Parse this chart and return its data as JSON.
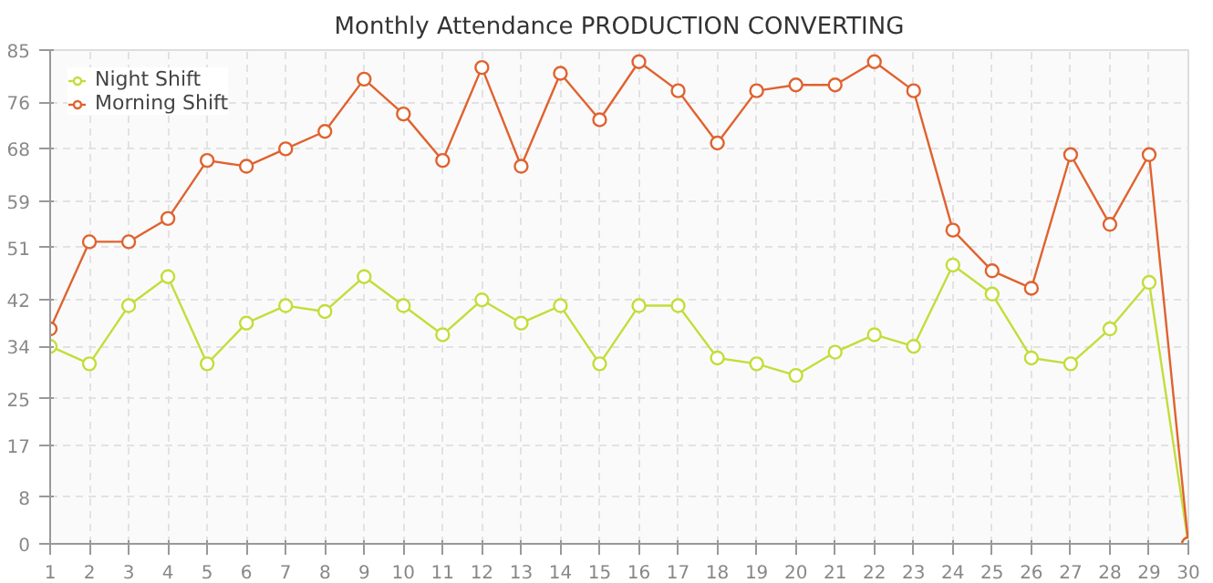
{
  "chart_data": {
    "type": "line",
    "title": "Monthly Attendance PRODUCTION CONVERTING",
    "x": [
      1,
      2,
      3,
      4,
      5,
      6,
      7,
      8,
      9,
      10,
      11,
      12,
      13,
      14,
      15,
      16,
      17,
      18,
      19,
      20,
      21,
      22,
      23,
      24,
      25,
      26,
      27,
      28,
      29,
      30
    ],
    "series": [
      {
        "name": "Night Shift",
        "color": "#c3dd3a",
        "values": [
          34,
          31,
          41,
          46,
          31,
          38,
          41,
          40,
          46,
          41,
          36,
          42,
          38,
          41,
          31,
          41,
          41,
          32,
          31,
          29,
          33,
          36,
          34,
          48,
          43,
          32,
          31,
          37,
          45,
          0
        ]
      },
      {
        "name": "Morning Shift",
        "color": "#e0622f",
        "values": [
          37,
          52,
          52,
          56,
          66,
          65,
          68,
          71,
          80,
          74,
          66,
          82,
          65,
          81,
          73,
          83,
          78,
          69,
          78,
          79,
          79,
          83,
          78,
          54,
          47,
          44,
          67,
          55,
          67,
          0
        ]
      }
    ],
    "xlim": [
      1,
      30
    ],
    "xticks": [
      1,
      2,
      3,
      4,
      5,
      6,
      7,
      8,
      9,
      10,
      11,
      12,
      13,
      14,
      15,
      16,
      17,
      18,
      19,
      20,
      21,
      22,
      23,
      24,
      25,
      26,
      27,
      28,
      29,
      30
    ],
    "ylim": [
      0,
      85
    ],
    "yticks": [
      0,
      8,
      17,
      25,
      34,
      42,
      51,
      59,
      68,
      76,
      85
    ],
    "grid": true,
    "legend": "top left",
    "marker": "circle",
    "line_style": "solid"
  }
}
